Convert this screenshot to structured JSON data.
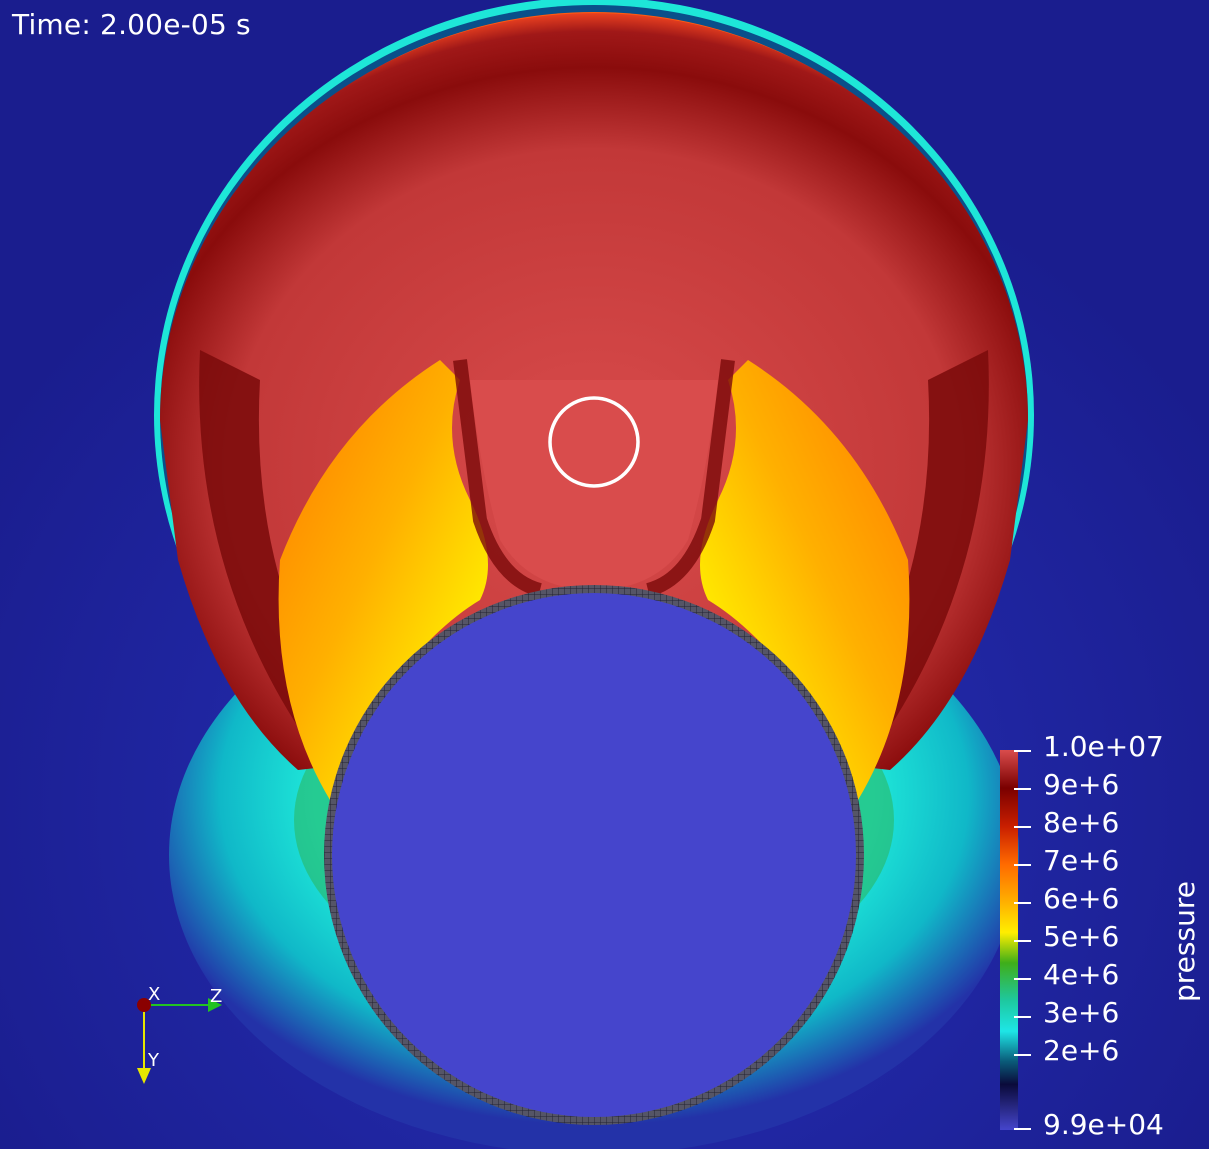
{
  "time_label": "Time: 2.00e-05 s",
  "colorbar": {
    "title": "pressure",
    "ticks": [
      "1.0e+07",
      "9e+6",
      "8e+6",
      "7e+6",
      "6e+6",
      "5e+6",
      "4e+6",
      "3e+6",
      "2e+6",
      "9.9e+04"
    ]
  },
  "axes": {
    "x": "X",
    "y": "Y",
    "z": "Z"
  },
  "colors": {
    "background": "#1a1d8e",
    "cylinder": "#4545cc",
    "high": "#d94c4c",
    "dark_red": "#7a0000",
    "orange": "#ff8a00",
    "yellow": "#ffe600",
    "green": "#3fae19",
    "cyan": "#1ee6d8",
    "marker": "#ffffff"
  },
  "icons": [
    "axes-triad-icon"
  ]
}
